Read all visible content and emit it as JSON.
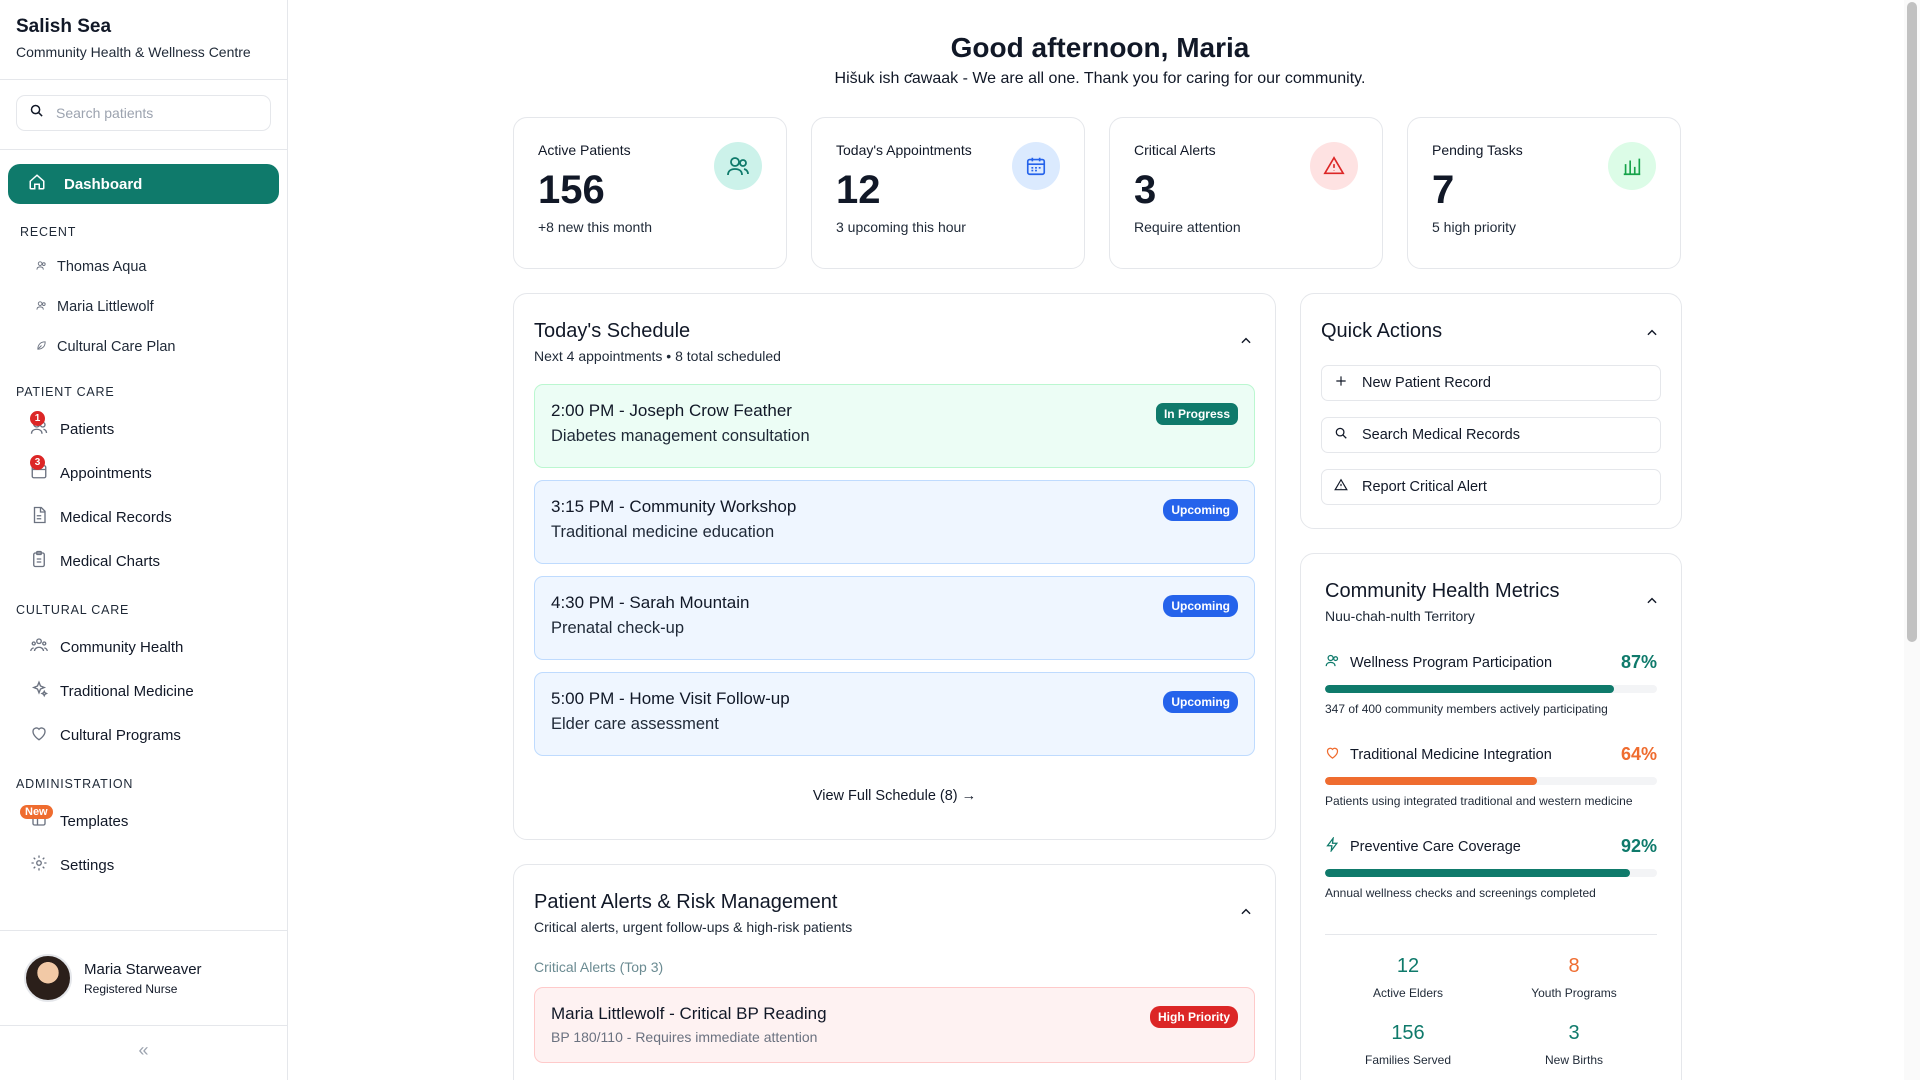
{
  "sidebar": {
    "brand_name": "Salish Sea",
    "brand_sub": "Community Health & Wellness Centre",
    "search_placeholder": "Search patients",
    "active_item": "Dashboard",
    "recent_title": "RECENT",
    "recent": [
      "Thomas Aqua",
      "Maria Littlewolf",
      "Cultural Care Plan"
    ],
    "patient_care_title": "PATIENT CARE",
    "patient_care": [
      {
        "label": "Patients",
        "badge": "1"
      },
      {
        "label": "Appointments",
        "badge": "3"
      },
      {
        "label": "Medical Records",
        "badge": ""
      },
      {
        "label": "Medical Charts",
        "badge": ""
      }
    ],
    "cultural_care_title": "CULTURAL CARE",
    "cultural_care": [
      "Community Health",
      "Traditional Medicine",
      "Cultural Programs"
    ],
    "admin_title": "ADMINISTRATION",
    "admin": [
      {
        "label": "Templates",
        "badge": "New"
      },
      {
        "label": "Settings",
        "badge": ""
      }
    ],
    "user": {
      "name": "Maria Starweaver",
      "role": "Registered Nurse"
    },
    "collapse_glyph": "«"
  },
  "header": {
    "greeting": "Good afternoon, Maria",
    "subtitle": "Hišuk ish ƈawaak - We are all one. Thank you for caring for our community."
  },
  "stats": [
    {
      "label": "Active Patients",
      "value": "156",
      "note": "+8 new this month",
      "icon": "users-icon",
      "color": "#0f7a6b",
      "bg": "#ccf2ea"
    },
    {
      "label": "Today's Appointments",
      "value": "12",
      "note": "3 upcoming this hour",
      "icon": "calendar-icon",
      "color": "#2563eb",
      "bg": "#dbeafe"
    },
    {
      "label": "Critical Alerts",
      "value": "3",
      "note": "Require attention",
      "icon": "warning-icon",
      "color": "#dc2626",
      "bg": "#fee2e2"
    },
    {
      "label": "Pending Tasks",
      "value": "7",
      "note": "5 high priority",
      "icon": "chart-icon",
      "color": "#16a34a",
      "bg": "#dcfce7"
    }
  ],
  "schedule": {
    "title": "Today's Schedule",
    "subtitle": "Next 4 appointments • 8 total scheduled",
    "items": [
      {
        "time": "2:00 PM - Joseph Crow Feather",
        "desc": "Diabetes management consultation",
        "status": "In Progress"
      },
      {
        "time": "3:15 PM - Community Workshop",
        "desc": "Traditional medicine education",
        "status": "Upcoming"
      },
      {
        "time": "4:30 PM - Sarah Mountain",
        "desc": "Prenatal check-up",
        "status": "Upcoming"
      },
      {
        "time": "5:00 PM - Home Visit Follow-up",
        "desc": "Elder care assessment",
        "status": "Upcoming"
      }
    ],
    "view_all": "View Full Schedule (8) →"
  },
  "alerts": {
    "title": "Patient Alerts & Risk Management",
    "subtitle": "Critical alerts, urgent follow-ups & high-risk patients",
    "section": "Critical Alerts (Top 3)",
    "items": [
      {
        "title": "Maria Littlewolf - Critical BP Reading",
        "sub": "BP 180/110 - Requires immediate attention",
        "priority": "High Priority"
      }
    ]
  },
  "quick_actions": {
    "title": "Quick Actions",
    "items": [
      "New Patient Record",
      "Search Medical Records",
      "Report Critical Alert"
    ]
  },
  "metrics": {
    "title": "Community Health Metrics",
    "subtitle": "Nuu-chah-nulth Territory",
    "items": [
      {
        "name": "Wellness Program Participation",
        "pct": "87%",
        "value": 0.87,
        "note": "347 of 400 community members actively participating",
        "color": "#0f7a6b"
      },
      {
        "name": "Traditional Medicine Integration",
        "pct": "64%",
        "value": 0.64,
        "note": "Patients using integrated traditional and western medicine",
        "color": "#ef6c2f"
      },
      {
        "name": "Preventive Care Coverage",
        "pct": "92%",
        "value": 0.92,
        "note": "Annual wellness checks and screenings completed",
        "color": "#0f7a6b"
      }
    ],
    "grid": [
      {
        "value": "12",
        "label": "Active Elders",
        "color": "#0f7a6b"
      },
      {
        "value": "8",
        "label": "Youth Programs",
        "color": "#ef6c2f"
      },
      {
        "value": "156",
        "label": "Families Served",
        "color": "#0f7a6b"
      },
      {
        "value": "3",
        "label": "New Births",
        "color": "#0f7a6b"
      }
    ]
  }
}
